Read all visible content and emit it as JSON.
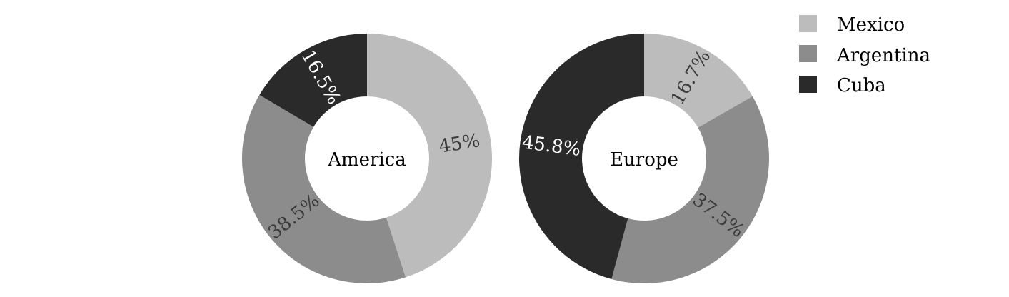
{
  "chart_data": [
    {
      "type": "pie",
      "title": "",
      "center_label": "America",
      "categories": [
        "Mexico",
        "Argentina",
        "Cuba"
      ],
      "values": [
        45,
        38.5,
        16.5
      ],
      "value_labels": [
        "45%",
        "38.5%",
        "16.5%"
      ]
    },
    {
      "type": "pie",
      "title": "",
      "center_label": "Europe",
      "categories": [
        "Mexico",
        "Argentina",
        "Cuba"
      ],
      "values": [
        16.7,
        37.5,
        45.8
      ],
      "value_labels": [
        "16.7%",
        "37.5%",
        "45.8%"
      ]
    }
  ],
  "legend": {
    "placement": "top-right",
    "items": [
      {
        "label": "Mexico",
        "color": "#bcbcbc"
      },
      {
        "label": "Argentina",
        "color": "#8c8c8c"
      },
      {
        "label": "Cuba",
        "color": "#2a2a2a"
      }
    ]
  },
  "colors": {
    "Mexico": "#bcbcbc",
    "Argentina": "#8c8c8c",
    "Cuba": "#2a2a2a",
    "label_on_light": "#3a3a3a",
    "label_on_dark": "#ffffff"
  }
}
